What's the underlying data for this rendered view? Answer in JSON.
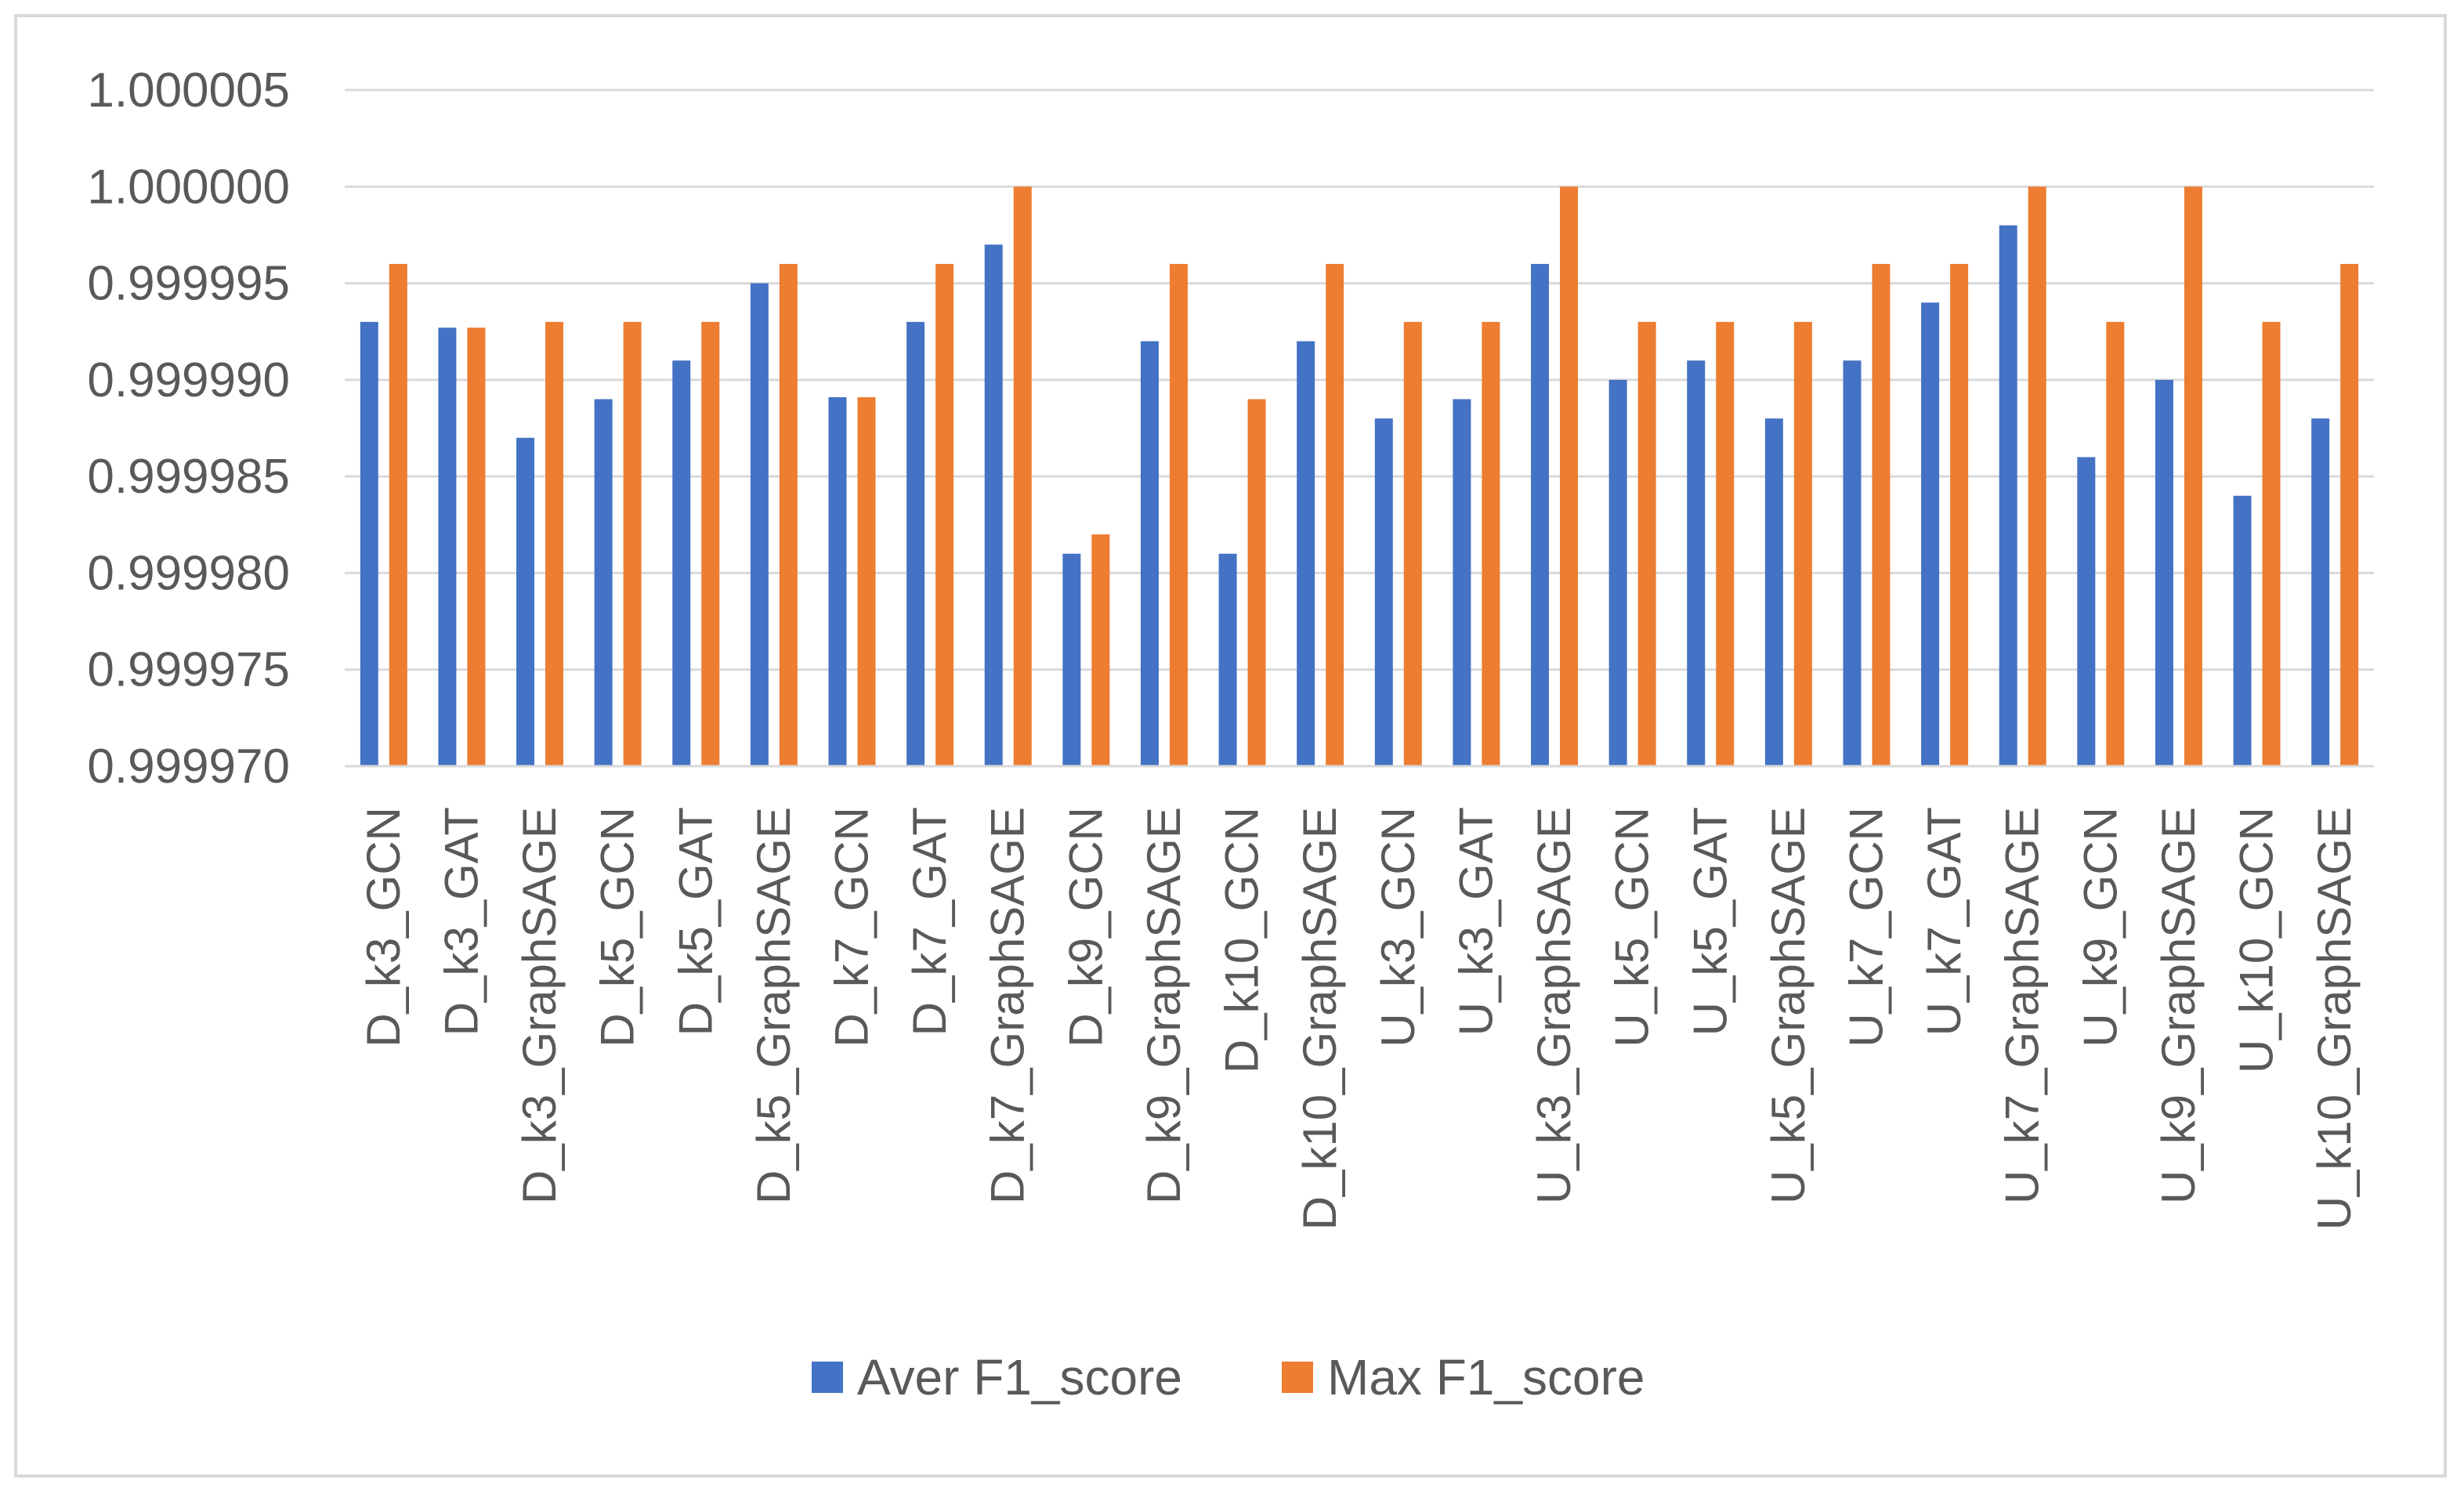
{
  "colors": {
    "series_0": "#4472c4",
    "series_1": "#ed7d31",
    "gridline": "#d9d9d9",
    "axis": "#d9d9d9",
    "text": "#595959"
  },
  "chart_data": {
    "type": "bar",
    "title": "",
    "xlabel": "",
    "ylabel": "",
    "ylim": [
      0.99997,
      1.000005
    ],
    "yticks": [
      0.99997,
      0.999975,
      0.99998,
      0.999985,
      0.99999,
      0.999995,
      1.0,
      1.000005
    ],
    "ytick_labels": [
      "0.999970",
      "0.999975",
      "0.999980",
      "0.999985",
      "0.999990",
      "0.999995",
      "1.000000",
      "1.000005"
    ],
    "grid": true,
    "legend_position": "bottom",
    "categories": [
      "D_k3_GCN",
      "D_k3_GAT",
      "D_k3_GraphSAGE",
      "D_k5_GCN",
      "D_k5_GAT",
      "D_k5_GraphSAGE",
      "D_k7_GCN",
      "D_k7_GAT",
      "D_k7_GraphSAGE",
      "D_k9_GCN",
      "D_k9_GraphSAGE",
      "D_k10_GCN",
      "D_k10_GraphSAGE",
      "U_k3_GCN",
      "U_k3_GAT",
      "U_k3_GraphSAGE",
      "U_k5_GCN",
      "U_k5_GAT",
      "U_k5_GraphSAGE",
      "U_k7_GCN",
      "U_k7_GAT",
      "U_k7_GraphSAGE",
      "U_k9_GCN",
      "U_k9_GraphSAGE",
      "U_k10_GCN",
      "U_k10_GraphSAGE"
    ],
    "series": [
      {
        "name": "Aver F1_score",
        "values": [
          0.999993,
          0.9999927,
          0.999987,
          0.999989,
          0.999991,
          0.999995,
          0.9999891,
          0.999993,
          0.999997,
          0.999981,
          0.999992,
          0.999981,
          0.999992,
          0.999988,
          0.999989,
          0.999996,
          0.99999,
          0.999991,
          0.999988,
          0.999991,
          0.999994,
          0.999998,
          0.999986,
          0.99999,
          0.999984,
          0.999988
        ]
      },
      {
        "name": "Max F1_score",
        "values": [
          0.999996,
          0.9999927,
          0.999993,
          0.999993,
          0.999993,
          0.999996,
          0.9999891,
          0.999996,
          1.0,
          0.999982,
          0.999996,
          0.999989,
          0.999996,
          0.999993,
          0.999993,
          1.0,
          0.999993,
          0.999993,
          0.999993,
          0.999996,
          0.999996,
          1.0,
          0.999993,
          1.0,
          0.999993,
          0.999996
        ]
      }
    ]
  }
}
